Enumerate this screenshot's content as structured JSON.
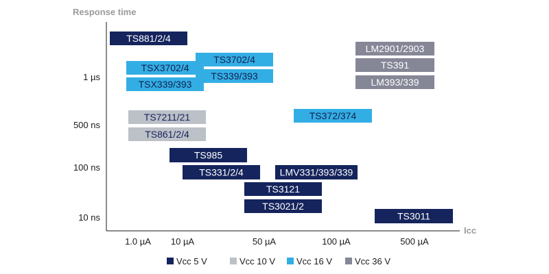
{
  "chart_data": {
    "type": "range-chart",
    "ylabel": "Response time",
    "xlabel": "Icc",
    "y_ticks": [
      "1 µs",
      "500 ns",
      "100 ns",
      "10 ns"
    ],
    "x_ticks": [
      "1.0 µA",
      "10 µA",
      "50 µA",
      "100 µA",
      "500 µA"
    ],
    "legend": [
      {
        "key": "vcc5",
        "label": "Vcc 5 V",
        "color": "#15245c"
      },
      {
        "key": "vcc10",
        "label": "Vcc 10 V",
        "color": "#bcc0c7"
      },
      {
        "key": "vcc16",
        "label": "Vcc 16 V",
        "color": "#33aee5"
      },
      {
        "key": "vcc36",
        "label": "Vcc 36 V",
        "color": "#858696"
      }
    ],
    "products": [
      {
        "name": "TS881/2/4",
        "series": "vcc5"
      },
      {
        "name": "TS3702/4",
        "series": "vcc16"
      },
      {
        "name": "TSX3702/4",
        "series": "vcc16"
      },
      {
        "name": "TS339/393",
        "series": "vcc16"
      },
      {
        "name": "TSX339/393",
        "series": "vcc16"
      },
      {
        "name": "LM2901/2903",
        "series": "vcc36"
      },
      {
        "name": "TS391",
        "series": "vcc36"
      },
      {
        "name": "LM393/339",
        "series": "vcc36"
      },
      {
        "name": "TS7211/21",
        "series": "vcc10"
      },
      {
        "name": "TS861/2/4",
        "series": "vcc10"
      },
      {
        "name": "TS372/374",
        "series": "vcc16"
      },
      {
        "name": "TS985",
        "series": "vcc5"
      },
      {
        "name": "TS331/2/4",
        "series": "vcc5"
      },
      {
        "name": "LMV331/393/339",
        "series": "vcc5"
      },
      {
        "name": "TS3121",
        "series": "vcc5"
      },
      {
        "name": "TS3021/2",
        "series": "vcc5"
      },
      {
        "name": "TS3011",
        "series": "vcc5"
      }
    ]
  }
}
